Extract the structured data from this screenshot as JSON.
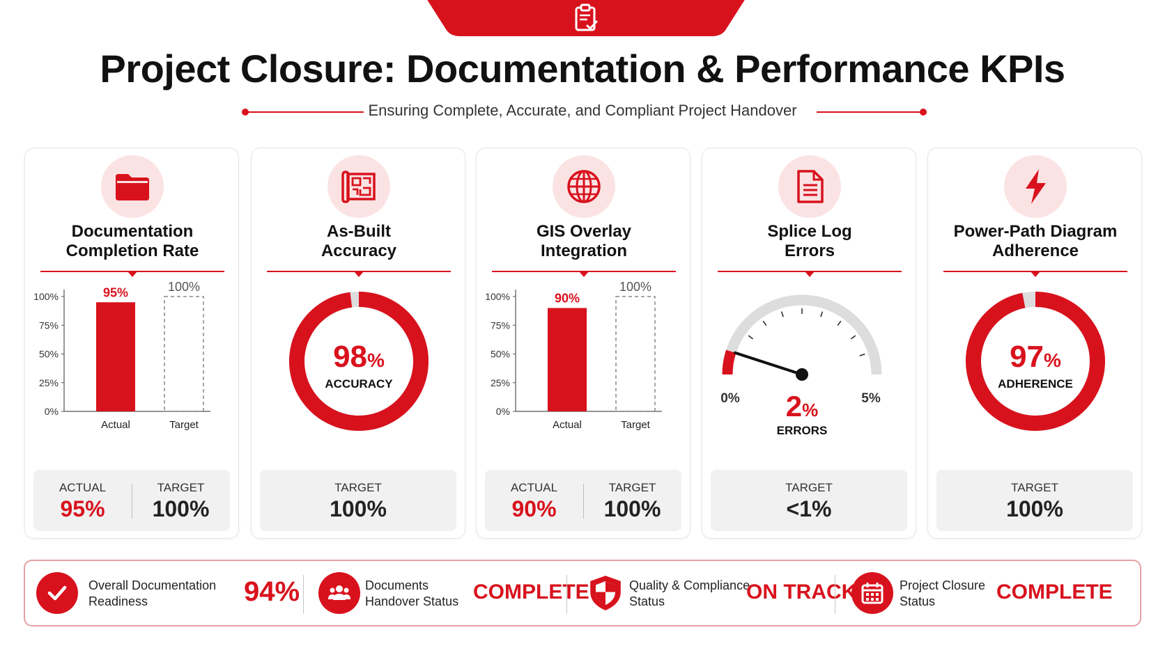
{
  "header": {
    "title": "Project Closure: Documentation & Performance KPIs",
    "subtitle": "Ensuring Complete, Accurate, and Compliant Project Handover",
    "icon": "clipboard-check-icon",
    "accent_color": "#d8121d"
  },
  "cards": [
    {
      "title_line1": "Documentation",
      "title_line2": "Completion Rate",
      "icon": "folder-icon",
      "chart_kind": "bar",
      "footer": {
        "actual_label": "ACTUAL",
        "actual_value": "95%",
        "target_label": "TARGET",
        "target_value": "100%"
      }
    },
    {
      "title_line1": "As-Built",
      "title_line2": "Accuracy",
      "icon": "blueprint-icon",
      "chart_kind": "donut",
      "footer": {
        "target_label": "TARGET",
        "target_value": "100%"
      }
    },
    {
      "title_line1": "GIS Overlay",
      "title_line2": "Integration",
      "icon": "globe-icon",
      "chart_kind": "bar",
      "footer": {
        "actual_label": "ACTUAL",
        "actual_value": "90%",
        "target_label": "TARGET",
        "target_value": "100%"
      }
    },
    {
      "title_line1": "Splice Log",
      "title_line2": "Errors",
      "icon": "document-icon",
      "chart_kind": "gauge",
      "footer": {
        "target_label": "TARGET",
        "target_value": "<1%"
      }
    },
    {
      "title_line1": "Power-Path Diagram",
      "title_line2": "Adherence",
      "icon": "lightning-bolt-icon",
      "chart_kind": "donut",
      "footer": {
        "target_label": "TARGET",
        "target_value": "100%"
      }
    }
  ],
  "chart_data": [
    {
      "type": "bar",
      "title": "Documentation Completion Rate",
      "categories": [
        "Actual",
        "Target"
      ],
      "values": [
        95,
        100
      ],
      "value_labels": [
        "95%",
        "100%"
      ],
      "yticks": [
        "0%",
        "25%",
        "50%",
        "75%",
        "100%"
      ],
      "ylim": [
        0,
        100
      ],
      "target_style": "dashed-outline"
    },
    {
      "type": "pie",
      "title": "As-Built Accuracy",
      "values": [
        98,
        2
      ],
      "center_value": "98",
      "center_unit": "%",
      "center_label": "ACCURACY",
      "colors": [
        "#d8121d",
        "#dddddd"
      ]
    },
    {
      "type": "bar",
      "title": "GIS Overlay Integration",
      "categories": [
        "Actual",
        "Target"
      ],
      "values": [
        90,
        100
      ],
      "value_labels": [
        "90%",
        "100%"
      ],
      "yticks": [
        "0%",
        "25%",
        "50%",
        "75%",
        "100%"
      ],
      "ylim": [
        0,
        100
      ],
      "target_style": "dashed-outline"
    },
    {
      "type": "gauge",
      "title": "Splice Log Errors",
      "value": 2,
      "range": [
        0,
        5
      ],
      "min_label": "0%",
      "max_label": "5%",
      "center_value": "2",
      "center_unit": "%",
      "center_label": "ERRORS",
      "colors": [
        "#d8121d",
        "#dddddd"
      ]
    },
    {
      "type": "pie",
      "title": "Power-Path Diagram Adherence",
      "values": [
        97,
        3
      ],
      "center_value": "97",
      "center_unit": "%",
      "center_label": "ADHERENCE",
      "colors": [
        "#d8121d",
        "#dddddd"
      ]
    }
  ],
  "summary": [
    {
      "icon": "checkmark-icon",
      "label_line1": "Overall Documentation",
      "label_line2": "Readiness",
      "value": "94%"
    },
    {
      "icon": "people-icon",
      "label_line1": "Documents",
      "label_line2": "Handover Status",
      "value": "COMPLETE"
    },
    {
      "icon": "shield-icon",
      "label_line1": "Quality & Compliance",
      "label_line2": "Status",
      "value": "ON TRACK"
    },
    {
      "icon": "calendar-icon",
      "label_line1": "Project Closure",
      "label_line2": "Status",
      "value": "COMPLETE"
    }
  ]
}
